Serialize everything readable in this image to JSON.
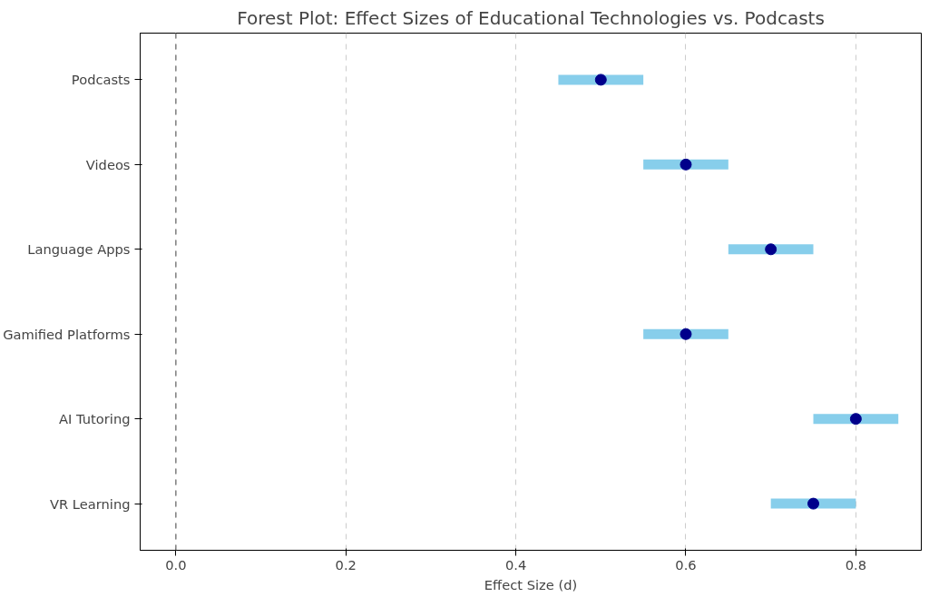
{
  "chart_data": {
    "type": "scatter",
    "orientation": "horizontal",
    "title": "Forest Plot: Effect Sizes of Educational Technologies vs. Podcasts",
    "xlabel": "Effect Size (d)",
    "categories": [
      "Podcasts",
      "Videos",
      "Language Apps",
      "Gamified Platforms",
      "AI Tutoring",
      "VR Learning"
    ],
    "values": [
      0.5,
      0.6,
      0.7,
      0.6,
      0.8,
      0.75
    ],
    "errors": [
      0.05,
      0.05,
      0.05,
      0.05,
      0.05,
      0.05
    ],
    "color": "#00008b",
    "marker": "circle",
    "xlim": [
      -0.042,
      0.877
    ],
    "xticks": [
      {
        "value": 0.0,
        "label": "0.0"
      },
      {
        "value": 0.2,
        "label": "0.2"
      },
      {
        "value": 0.4,
        "label": "0.4"
      },
      {
        "value": 0.6,
        "label": "0.6"
      },
      {
        "value": 0.8,
        "label": "0.8"
      }
    ],
    "grid": "x",
    "ref_lines": [
      {
        "axis": "x",
        "value": 0,
        "color": "#808080",
        "line_style": "dashed"
      }
    ]
  }
}
